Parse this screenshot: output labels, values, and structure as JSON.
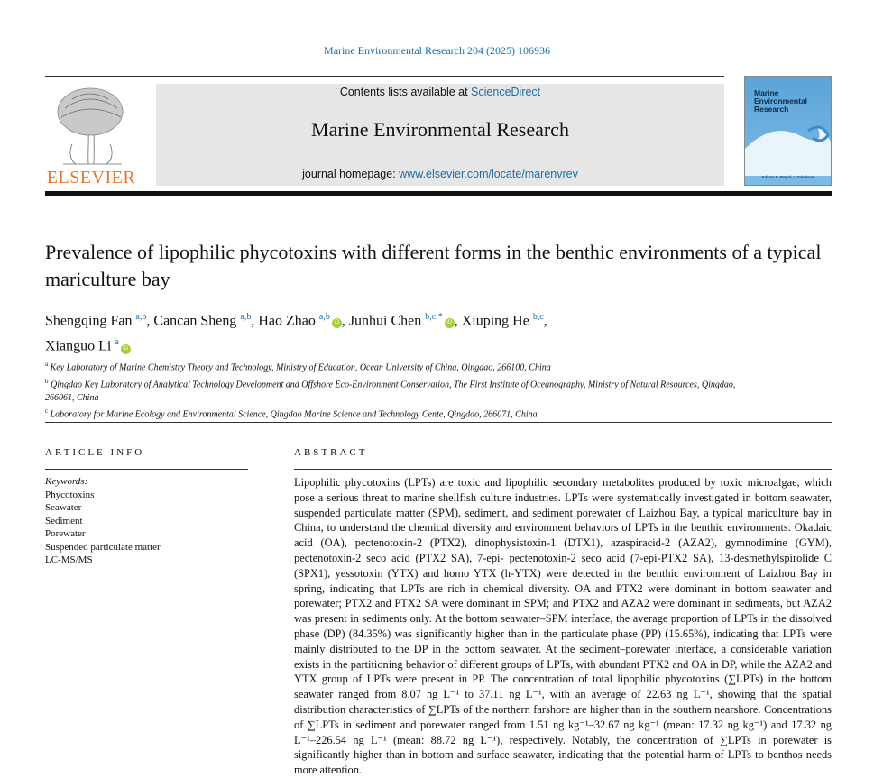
{
  "header": {
    "journal_reference": "Marine Environmental Research 204 (2025) 106936",
    "publisher_logo_text": "ELSEVIER",
    "contents_prefix": "Contents lists available at ",
    "contents_link": "ScienceDirect",
    "journal_title": "Marine Environmental Research",
    "homepage_prefix": "journal homepage: ",
    "homepage_link": "www.elsevier.com/locate/marenvrev",
    "cover": {
      "title_line1": "Marine",
      "title_line2": "Environmental",
      "title_line3": "Research",
      "editors": "Editors F. Regoli, I. Sokolova"
    }
  },
  "article": {
    "title": "Prevalence of lipophilic phycotoxins with different forms in the benthic environments of a typical mariculture bay",
    "authors": [
      {
        "name": "Shengqing Fan",
        "aff": "a,b",
        "orcid": false
      },
      {
        "name": "Cancan Sheng",
        "aff": "a,b",
        "orcid": false
      },
      {
        "name": "Hao Zhao",
        "aff": "a,b",
        "orcid": true
      },
      {
        "name": "Junhui Chen",
        "aff": "b,c,*",
        "orcid": true
      },
      {
        "name": "Xiuping He",
        "aff": "b,c",
        "orcid": false
      },
      {
        "name": "Xianguo Li",
        "aff": "a",
        "orcid": true
      }
    ],
    "affiliations": [
      {
        "mark": "a",
        "text": "Key Laboratory of Marine Chemistry Theory and Technology, Ministry of Education, Ocean University of China, Qingdao, 266100, China"
      },
      {
        "mark": "b",
        "text": "Qingdao Key Laboratory of Analytical Technology Development and Offshore Eco-Environment Conservation, The First Institute of Oceanography, Ministry of Natural Resources, Qingdao, 266061, China"
      },
      {
        "mark": "c",
        "text": "Laboratory for Marine Ecology and Environmental Science, Qingdao Marine Science and Technology Cente, Qingdao, 266071, China"
      }
    ]
  },
  "article_info": {
    "heading": "ARTICLE INFO",
    "keywords_label": "Keywords:",
    "keywords": [
      "Phycotoxins",
      "Seawater",
      "Sediment",
      "Porewater",
      "Suspended particulate matter",
      "LC-MS/MS"
    ]
  },
  "abstract": {
    "heading": "ABSTRACT",
    "text": "Lipophilic phycotoxins (LPTs) are toxic and lipophilic secondary metabolites produced by toxic microalgae, which pose a serious threat to marine shellfish culture industries. LPTs were systematically investigated in bottom seawater, suspended particulate matter (SPM), sediment, and sediment porewater of Laizhou Bay, a typical mariculture bay in China, to understand the chemical diversity and environment behaviors of LPTs in the benthic environments. Okadaic acid (OA), pectenotoxin-2 (PTX2), dinophysistoxin-1 (DTX1), azaspiracid-2 (AZA2), gymnodimine (GYM), pectenotoxin-2 seco acid (PTX2 SA), 7-epi- pectenotoxin-2 seco acid (7-epi-PTX2 SA), 13-desmethylspirolide C (SPX1), yessotoxin (YTX) and homo YTX (h-YTX) were detected in the benthic environment of Laizhou Bay in spring, indicating that LPTs are rich in chemical diversity. OA and PTX2 were dominant in bottom seawater and porewater; PTX2 and PTX2 SA were dominant in SPM; and PTX2 and AZA2 were dominant in sediments, but AZA2 was present in sediments only. At the bottom seawater–SPM interface, the average proportion of LPTs in the dissolved phase (DP) (84.35%) was significantly higher than in the particulate phase (PP) (15.65%), indicating that LPTs were mainly distributed to the DP in the bottom seawater. At the sediment–porewater interface, a considerable variation exists in the partitioning behavior of different groups of LPTs, with abundant PTX2 and OA in DP, while the AZA2 and YTX group of LPTs were present in PP. The concentration of total lipophilic phycotoxins (∑LPTs) in the bottom seawater ranged from 8.07 ng L⁻¹ to 37.11 ng L⁻¹, with an average of 22.63 ng L⁻¹, showing that the spatial distribution characteristics of ∑LPTs of the northern farshore are higher than in the southern nearshore. Concentrations of ∑LPTs in sediment and porewater ranged from 1.51 ng kg⁻¹–32.67 ng kg⁻¹ (mean: 17.32 ng kg⁻¹) and 17.32 ng L⁻¹–226.54 ng L⁻¹ (mean: 88.72 ng L⁻¹), respectively. Notably, the concentration of ∑LPTs in porewater is significantly higher than in bottom and surface seawater, indicating that the potential harm of LPTs to benthos needs more attention."
  },
  "colors": {
    "link": "#1a6fa8",
    "elsevier_orange": "#e8772e",
    "header_gray": "#e6e6e6",
    "orcid": "#a6ce39"
  }
}
